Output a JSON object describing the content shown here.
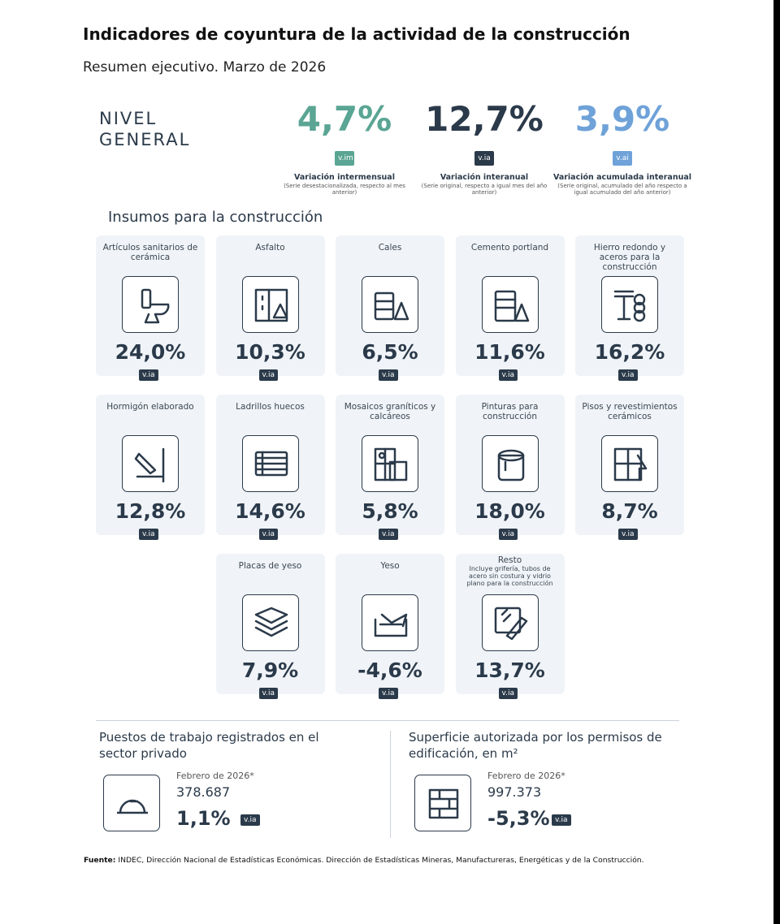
{
  "header": {
    "title": "Indicadores de coyuntura de la actividad de la construcción",
    "subtitle": "Resumen ejecutivo. Marzo de 2026"
  },
  "nivel_general": {
    "label": "NIVEL GENERAL",
    "indicators": [
      {
        "value": "4,7%",
        "tag": "v.im",
        "label": "Variación intermensual",
        "note": "(Serie desestacionalizada, respecto al mes anterior)"
      },
      {
        "value": "12,7%",
        "tag": "v.ia",
        "label": "Variación interanual",
        "note": "(Serie original, respecto a igual mes del año anterior)"
      },
      {
        "value": "3,9%",
        "tag": "v.ai",
        "label": "Variación acumulada interanual",
        "note": "(Serie original, acumulado del año respecto a igual acumulado del año anterior)"
      }
    ]
  },
  "insumos": {
    "title": "Insumos para la construcción",
    "items": [
      {
        "name": "Artículos sanitarios de cerámica",
        "value": "24,0%",
        "tag": "v.ia"
      },
      {
        "name": "Asfalto",
        "value": "10,3%",
        "tag": "v.ia"
      },
      {
        "name": "Cales",
        "value": "6,5%",
        "tag": "v.ia"
      },
      {
        "name": "Cemento portland",
        "value": "11,6%",
        "tag": "v.ia"
      },
      {
        "name": "Hierro redondo y aceros para la construcción",
        "value": "16,2%",
        "tag": "v.ia"
      },
      {
        "name": "Hormigón elaborado",
        "value": "12,8%",
        "tag": "v.ia"
      },
      {
        "name": "Ladrillos huecos",
        "value": "14,6%",
        "tag": "v.ia"
      },
      {
        "name": "Mosaicos graníticos y calcáreos",
        "value": "5,8%",
        "tag": "v.ia"
      },
      {
        "name": "Pinturas para construcción",
        "value": "18,0%",
        "tag": "v.ia"
      },
      {
        "name": "Pisos y revestimientos cerámicos",
        "value": "8,7%",
        "tag": "v.ia"
      },
      {
        "name": "Placas de yeso",
        "value": "7,9%",
        "tag": "v.ia"
      },
      {
        "name": "Yeso",
        "value": "-4,6%",
        "tag": "v.ia"
      },
      {
        "name": "Resto",
        "note": "Incluye grifería, tubos de acero sin costura y vidrio plano para la construcción",
        "value": "13,7%",
        "tag": "v.ia"
      }
    ]
  },
  "empleo": {
    "title": "Puestos de trabajo registrados en el sector privado",
    "period": "Febrero de 2026*",
    "level": "378.687",
    "value": "1,1%",
    "tag": "v.ia"
  },
  "superficie": {
    "title": "Superficie autorizada por los permisos de edificación, en m²",
    "period": "Febrero de 2026*",
    "level": "997.373",
    "value": "-5,3%",
    "tag": "v.ia"
  },
  "footer": {
    "label": "Fuente:",
    "text": "INDEC, Dirección Nacional de Estadísticas Económicas. Dirección de Estadísticas Mineras, Manufactureras, Energéticas y de la Construcción."
  }
}
